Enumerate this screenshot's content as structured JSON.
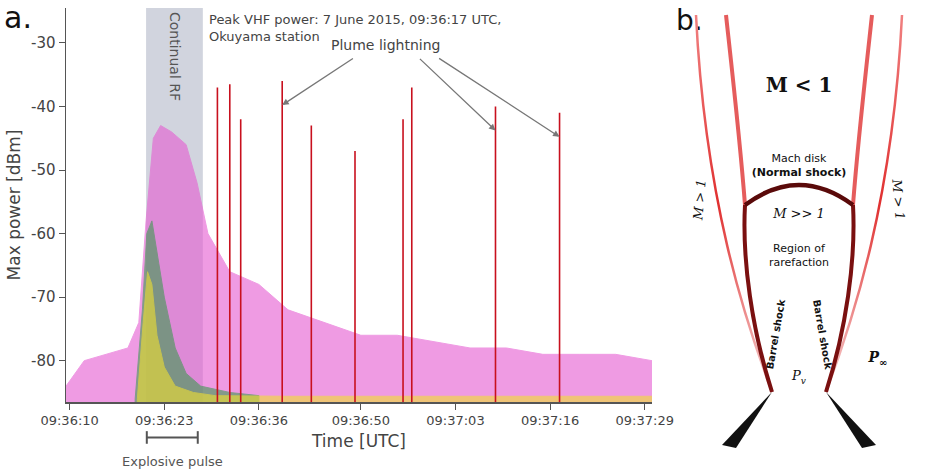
{
  "chart_data": {
    "type": "scatter",
    "panel_label": "a.",
    "x_label": "Time [UTC]",
    "y_label": "Max power [dBm]",
    "xlim": [
      9.5,
      90
    ],
    "xticks": [
      {
        "value": 10,
        "label": "09:36:10"
      },
      {
        "value": 23,
        "label": "09:36:23"
      },
      {
        "value": 36,
        "label": "09:36:36"
      },
      {
        "value": 50,
        "label": "09:36:50"
      },
      {
        "value": 63,
        "label": "09:37:03"
      },
      {
        "value": 76,
        "label": "09:37:16"
      },
      {
        "value": 89,
        "label": "09:37:29"
      }
    ],
    "ylim": [
      -86.5,
      -24.5
    ],
    "yticks": [
      -80,
      -70,
      -60,
      -50,
      -40,
      -30
    ],
    "grid": false,
    "series": [
      {
        "type": "area",
        "color": "#e65ad2",
        "x": [
          9.5,
          12,
          15,
          18,
          19.5,
          20.5,
          21.5,
          22.5,
          24,
          26,
          27.5,
          29,
          32,
          36,
          40,
          45,
          50,
          55,
          60,
          65,
          70,
          75,
          80,
          85,
          90
        ],
        "values": [
          -84,
          -80,
          -79,
          -78,
          -74,
          -58,
          -45,
          -43,
          -44,
          -46,
          -52,
          -60,
          -66,
          -68,
          -72,
          -74,
          -76,
          -76,
          -77,
          -78,
          -78,
          -79,
          -79,
          -79,
          -80
        ]
      },
      {
        "type": "area",
        "color": "#3c9a50",
        "x": [
          19,
          20,
          20.6,
          21.3,
          22,
          23,
          24.5,
          26,
          28,
          32,
          36
        ],
        "values": [
          -86,
          -72,
          -60,
          -58,
          -63,
          -70,
          -78,
          -82,
          -84,
          -85,
          -85.5
        ]
      },
      {
        "type": "area",
        "color": "#f2e030",
        "x": [
          19.3,
          20.1,
          20.7,
          21.3,
          22,
          23,
          24.5,
          27,
          30,
          40,
          50,
          60,
          70,
          80,
          90
        ],
        "values": [
          -86,
          -74,
          -66,
          -68,
          -76,
          -81,
          -84,
          -85,
          -85.5,
          -85.6,
          -85.6,
          -85.6,
          -85.6,
          -85.6,
          -85.6
        ]
      },
      {
        "type": "stroke",
        "color": "#c8101e",
        "x": [
          30.3,
          32.0,
          33.5,
          39.2,
          43.2,
          49.2,
          55.8,
          57.0,
          68.5,
          77.3
        ],
        "values": [
          -37,
          -36.5,
          -42,
          -36,
          -43,
          -47,
          -42,
          -37,
          -40,
          -41
        ]
      }
    ],
    "annotations": [
      {
        "lines": [
          "Peak VHF power: 7 June 2015, 09:36:17 UTC,",
          "Okuyama station"
        ]
      },
      {
        "text": "Plume lightning",
        "points_to_strokes": [
          3,
          8,
          9
        ]
      }
    ],
    "spans": [
      {
        "text": "Continual RF",
        "x": [
          20.5,
          28.3
        ],
        "color": "#c9cdd8"
      }
    ],
    "brackets": [
      {
        "text": "Explosive pulse",
        "x": [
          20.6,
          27.6
        ]
      }
    ]
  },
  "diagram": {
    "panel_label": "b.",
    "labels": {
      "subsonic": "M < 1",
      "mach_disk": "Mach disk",
      "normal_shock": "(Normal shock)",
      "core": "M >> 1",
      "rarefaction": [
        "Region of",
        "rarefaction"
      ],
      "barrel_shock_left": "Barrel shock",
      "barrel_shock_right": "Barrel shock",
      "supersonic_left": "M > 1",
      "supersonic_right": "M > 1",
      "vent_pressure": {
        "base": "P",
        "sub": "v"
      },
      "ambient_pressure": {
        "base": "P",
        "sub": "∞"
      }
    }
  }
}
